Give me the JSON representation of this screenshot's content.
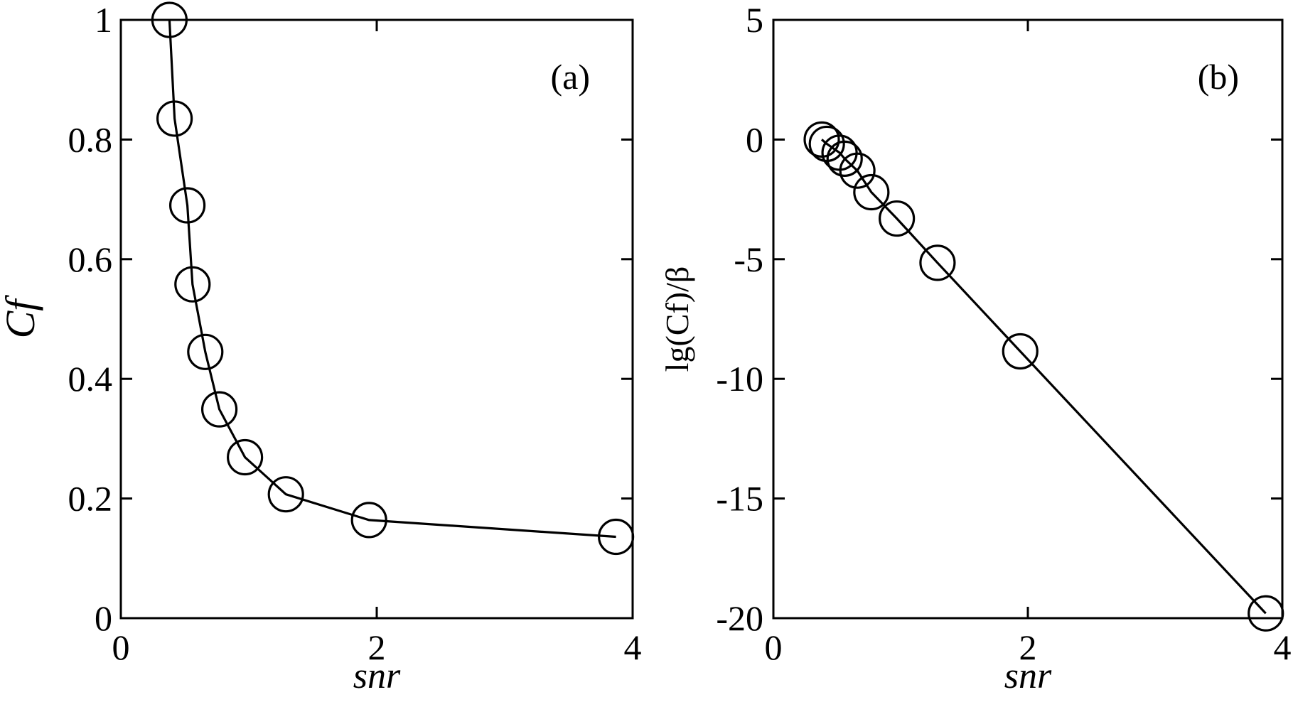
{
  "chart_data": [
    {
      "type": "line",
      "panel_label": "(a)",
      "xlabel": "snr",
      "ylabel": "Cf",
      "xlim": [
        0,
        4
      ],
      "ylim": [
        0,
        1
      ],
      "xticks": [
        0,
        2,
        4
      ],
      "yticks": [
        0,
        0.2,
        0.4,
        0.6,
        0.8,
        1
      ],
      "xtick_labels": [
        "0",
        "2",
        "4"
      ],
      "ytick_labels": [
        "0",
        "0.2",
        "0.4",
        "0.6",
        "0.8",
        "1"
      ],
      "grid": false,
      "marker": "open-circle",
      "series": [
        {
          "x": [
            0.38,
            0.42,
            0.52,
            0.56,
            0.66,
            0.77,
            0.97,
            1.29,
            1.94,
            3.87
          ],
          "y": [
            1.0,
            0.835,
            0.69,
            0.558,
            0.445,
            0.349,
            0.269,
            0.207,
            0.164,
            0.136
          ]
        }
      ]
    },
    {
      "type": "line",
      "panel_label": "(b)",
      "xlabel": "snr",
      "ylabel": "lg(Cf)/β",
      "xlim": [
        0,
        4
      ],
      "ylim": [
        -20,
        5
      ],
      "xticks": [
        0,
        2,
        4
      ],
      "yticks": [
        5,
        0,
        -5,
        -10,
        -15,
        -20
      ],
      "xtick_labels": [
        "0",
        "2",
        "4"
      ],
      "ytick_labels": [
        "5",
        "0",
        "-5",
        "-10",
        "-15",
        "-20"
      ],
      "grid": false,
      "marker": "open-circle",
      "series": [
        {
          "x": [
            0.38,
            0.42,
            0.52,
            0.56,
            0.66,
            0.77,
            0.97,
            1.29,
            1.94,
            3.87
          ],
          "y": [
            0.0,
            -0.18,
            -0.55,
            -0.8,
            -1.3,
            -2.2,
            -3.3,
            -5.15,
            -8.85,
            -19.8
          ]
        }
      ]
    }
  ]
}
